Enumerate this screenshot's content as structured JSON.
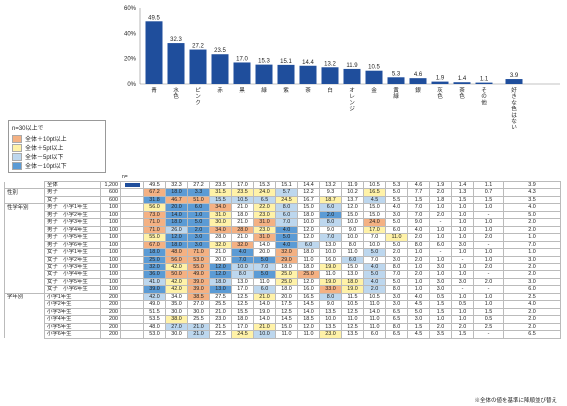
{
  "chart_data": {
    "type": "bar",
    "categories": [
      "青",
      "水色",
      "ピンク",
      "赤",
      "黒",
      "緑",
      "紫",
      "茶",
      "白",
      "オレンジ",
      "金",
      "黄緑",
      "銀",
      "灰色",
      "茶色",
      "その他",
      "好きな色はない"
    ],
    "values": [
      49.5,
      32.3,
      27.2,
      23.5,
      17.0,
      15.3,
      15.1,
      14.4,
      13.2,
      11.9,
      10.5,
      5.3,
      4.6,
      1.9,
      1.4,
      1.1,
      3.9
    ],
    "value_labels": [
      "49.5",
      "32.3",
      "27.2",
      "23.5",
      "17.0",
      "15.3",
      "15.1",
      "14.4",
      "13.2",
      "11.9",
      "10.5",
      "5.3",
      "4.6",
      "1.9",
      "1.4",
      "1.1",
      "3.9"
    ],
    "yticks": [
      "60%",
      "40%",
      "20%",
      "0%"
    ],
    "ylim": [
      0,
      60
    ],
    "bar_color": "#1f4e9c",
    "gap_after_index": 15
  },
  "legend": {
    "title": "n=30以上で",
    "items": [
      {
        "label": "全体＋10pt以上",
        "color": "#f4b183"
      },
      {
        "label": "全体＋5pt以上",
        "color": "#fff2a8"
      },
      {
        "label": "全体－5pt以下",
        "color": "#bdd7ee"
      },
      {
        "label": "全体－10pt以下",
        "color": "#5b9bd5"
      }
    ]
  },
  "n_label": "n=",
  "colors": {
    "h10": "#f4b183",
    "h5": "#fff2a8",
    "l5": "#bdd7ee",
    "l10": "#5b9bd5"
  },
  "rows": [
    {
      "seg": "",
      "g": "全体",
      "n": "1,200",
      "v": [
        "49.5",
        "32.3",
        "27.2",
        "23.5",
        "17.0",
        "15.3",
        "15.1",
        "14.4",
        "13.2",
        "11.9",
        "10.5",
        "5.3",
        "4.6",
        "1.9",
        "1.4",
        "1.1",
        "3.9"
      ],
      "c": "",
      "bar": true
    },
    {
      "seg": "性別",
      "g": "男子",
      "n": "600",
      "v": [
        "67.2",
        "18.0",
        "3.3",
        "31.5",
        "23.5",
        "24.0",
        "5.7",
        "12.2",
        "9.3",
        "10.2",
        "16.5",
        "5.0",
        "7.7",
        "2.0",
        "1.3",
        "0.7",
        "4.3"
      ],
      "c": "hllhhhlh"
    },
    {
      "seg": "",
      "g": "女子",
      "n": "600",
      "v": [
        "31.8",
        "46.7",
        "51.0",
        "15.5",
        "10.5",
        "6.5",
        "24.5",
        "16.7",
        "18.7",
        "13.7",
        "4.5",
        "5.5",
        "1.5",
        "1.8",
        "1.5",
        "1.5",
        "3.5"
      ],
      "c": "lhhllh"
    },
    {
      "seg": "性学年別",
      "g": "男子　小学1年生",
      "n": "100",
      "v": [
        "56.0",
        "20.0",
        "6.0",
        "34.0",
        "21.0",
        "22.0",
        "8.0",
        "15.0",
        "6.0",
        "12.0",
        "15.0",
        "4.0",
        "7.0",
        "1.0",
        "1.0",
        "1.0",
        "4.0"
      ],
      "c": "h"
    },
    {
      "seg": "",
      "g": "男子　小学2年生",
      "n": "100",
      "v": [
        "73.0",
        "14.0",
        "1.0",
        "31.0",
        "18.0",
        "23.0",
        "6.0",
        "18.0",
        "2.0",
        "15.0",
        "15.0",
        "3.0",
        "7.0",
        "2.0",
        "1.0",
        "-",
        "5.0"
      ],
      "c": "h"
    },
    {
      "seg": "",
      "g": "男子　小学3年生",
      "n": "100",
      "v": [
        "71.0",
        "18.0",
        "5.0",
        "30.0",
        "21.0",
        "31.0",
        "7.0",
        "10.0",
        "8.0",
        "10.0",
        "24.0",
        "5.0",
        "9.0",
        "-",
        "1.0",
        "1.0",
        "2.0"
      ],
      "c": "h"
    },
    {
      "seg": "",
      "g": "男子　小学4年生",
      "n": "100",
      "v": [
        "71.0",
        "26.0",
        "2.0",
        "34.0",
        "28.0",
        "23.0",
        "4.0",
        "12.0",
        "9.0",
        "9.0",
        "17.0",
        "6.0",
        "4.0",
        "1.0",
        "1.0",
        "1.0",
        "2.0"
      ],
      "c": "h"
    },
    {
      "seg": "",
      "g": "男子　小学5年生",
      "n": "100",
      "v": [
        "55.0",
        "12.0",
        "3.0",
        "28.0",
        "21.0",
        "31.0",
        "5.0",
        "12.0",
        "7.0",
        "10.0",
        "7.0",
        "11.0",
        "2.0",
        "1.0",
        "1.0",
        "2.0",
        "1.0"
      ],
      "c": "h"
    },
    {
      "seg": "",
      "g": "男子　小学6年生",
      "n": "100",
      "v": [
        "67.0",
        "18.0",
        "3.0",
        "32.0",
        "32.0",
        "14.0",
        "4.0",
        "6.0",
        "13.0",
        "8.0",
        "10.0",
        "5.0",
        "8.0",
        "6.0",
        "3.0",
        "-",
        "7.0"
      ],
      "c": "h"
    },
    {
      "seg": "",
      "g": "女子　小学1年生",
      "n": "100",
      "v": [
        "18.0",
        "48.0",
        "71.0",
        "21.0",
        "4.0",
        "20.0",
        "32.0",
        "18.0",
        "10.0",
        "11.0",
        "5.0",
        "2.0",
        "1.0",
        "-",
        "1.0",
        "1.0",
        "1.0"
      ],
      "c": "l"
    },
    {
      "seg": "",
      "g": "女子　小学2年生",
      "n": "100",
      "v": [
        "25.0",
        "56.0",
        "53.0",
        "20.0",
        "7.0",
        "5.0",
        "29.0",
        "11.0",
        "16.0",
        "6.0",
        "7.0",
        "3.0",
        "2.0",
        "1.0",
        "-",
        "1.0",
        "3.0"
      ],
      "c": "l"
    },
    {
      "seg": "",
      "g": "女子　小学3年生",
      "n": "100",
      "v": [
        "32.0",
        "42.0",
        "55.0",
        "12.0",
        "10.0",
        "7.0",
        "18.0",
        "18.0",
        "19.0",
        "15.0",
        "4.0",
        "8.0",
        "1.0",
        "3.0",
        "1.0",
        "2.0",
        "2.0"
      ],
      "c": "l"
    },
    {
      "seg": "",
      "g": "女子　小学4年生",
      "n": "100",
      "v": [
        "36.0",
        "50.0",
        "49.0",
        "12.0",
        "8.0",
        "5.0",
        "25.0",
        "25.0",
        "11.0",
        "13.0",
        "5.0",
        "7.0",
        "2.0",
        "1.0",
        "1.0",
        "-",
        "2.0"
      ],
      "c": "l"
    },
    {
      "seg": "",
      "g": "女子　小学5年生",
      "n": "100",
      "v": [
        "41.0",
        "42.0",
        "39.0",
        "18.0",
        "13.0",
        "11.0",
        "25.0",
        "12.0",
        "19.0",
        "18.0",
        "4.0",
        "5.0",
        "1.0",
        "3.0",
        "3.0",
        "2.0",
        "3.0"
      ],
      "c": "l"
    },
    {
      "seg": "",
      "g": "女子　小学6年生",
      "n": "100",
      "v": [
        "39.0",
        "42.0",
        "39.0",
        "13.0",
        "17.0",
        "6.0",
        "18.0",
        "16.0",
        "33.0",
        "19.0",
        "2.0",
        "8.0",
        "1.0",
        "3.0",
        "-",
        "-",
        "6.0"
      ],
      "c": "l"
    },
    {
      "seg": "学年別",
      "g": "小学1年生",
      "n": "200",
      "v": [
        "42.0",
        "34.0",
        "38.5",
        "27.5",
        "12.5",
        "21.0",
        "20.0",
        "16.5",
        "8.0",
        "11.5",
        "10.5",
        "3.0",
        "4.0",
        "0.5",
        "1.0",
        "1.0",
        "2.5"
      ],
      "c": ""
    },
    {
      "seg": "",
      "g": "小学2年生",
      "n": "200",
      "v": [
        "49.0",
        "35.0",
        "27.0",
        "25.5",
        "12.5",
        "14.0",
        "17.5",
        "14.5",
        "9.0",
        "10.5",
        "11.0",
        "3.0",
        "4.5",
        "1.5",
        "0.5",
        "1.0",
        "4.0"
      ],
      "c": ""
    },
    {
      "seg": "",
      "g": "小学3年生",
      "n": "200",
      "v": [
        "51.5",
        "30.0",
        "30.0",
        "21.0",
        "15.5",
        "19.0",
        "12.5",
        "14.0",
        "13.5",
        "12.5",
        "14.0",
        "6.5",
        "5.0",
        "1.5",
        "1.0",
        "1.5",
        "2.0"
      ],
      "c": ""
    },
    {
      "seg": "",
      "g": "小学4年生",
      "n": "200",
      "v": [
        "53.5",
        "38.0",
        "25.5",
        "23.0",
        "18.0",
        "14.0",
        "14.5",
        "18.5",
        "10.0",
        "11.0",
        "11.0",
        "6.5",
        "3.0",
        "1.0",
        "1.0",
        "0.5",
        "2.0"
      ],
      "c": ""
    },
    {
      "seg": "",
      "g": "小学5年生",
      "n": "200",
      "v": [
        "48.0",
        "27.0",
        "21.0",
        "21.5",
        "17.0",
        "21.0",
        "15.0",
        "12.0",
        "13.5",
        "12.5",
        "11.0",
        "8.0",
        "1.5",
        "2.0",
        "2.0",
        "2.5",
        "2.0"
      ],
      "c": ""
    },
    {
      "seg": "",
      "g": "小学6年生",
      "n": "200",
      "v": [
        "53.0",
        "30.0",
        "21.0",
        "22.5",
        "24.5",
        "10.0",
        "11.0",
        "11.0",
        "23.0",
        "13.5",
        "6.0",
        "6.5",
        "4.5",
        "3.5",
        "1.5",
        "-",
        "6.5"
      ],
      "c": ""
    }
  ],
  "note": "※全体の値を基準に降順並び替え"
}
